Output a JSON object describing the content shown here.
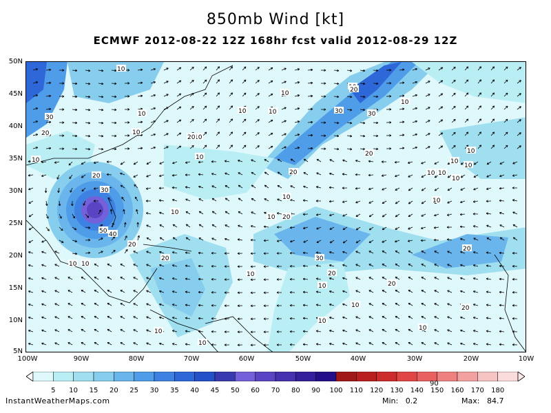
{
  "title": "850mb Wind [kt]",
  "subtitle": "ECMWF 2012-08-22 12Z 168hr fcst valid 2012-08-29 12Z",
  "y_axis_labels": [
    "50N",
    "45N",
    "40N",
    "35N",
    "30N",
    "25N",
    "20N",
    "15N",
    "10N",
    "5N"
  ],
  "x_axis_labels": [
    "100W",
    "90W",
    "80W",
    "70W",
    "60W",
    "50W",
    "40W",
    "30W",
    "20W",
    "10W"
  ],
  "colorbar": {
    "levels": [
      "5",
      "10",
      "15",
      "20",
      "25",
      "30",
      "35",
      "40",
      "45",
      "50",
      "60",
      "70",
      "80",
      "90",
      "100",
      "110",
      "120",
      "130",
      "140",
      "150",
      "160",
      "170",
      "180"
    ],
    "colors": [
      "#dff8fb",
      "#b9eef5",
      "#9fdff0",
      "#86cdee",
      "#6ab6ec",
      "#4f9ce9",
      "#3d82e3",
      "#2e67d8",
      "#2450c8",
      "#3a3ab0",
      "#7460d8",
      "#5a44c4",
      "#4530b0",
      "#331f9a",
      "#240f88",
      "#a01818",
      "#b82020",
      "#cc2c2c",
      "#e04646",
      "#e86060",
      "#ee8080",
      "#f3a0a0",
      "#f7c4c4",
      "#fbdcdc"
    ],
    "stray_label": "90"
  },
  "contour_labels": [
    {
      "text": "10"
    },
    {
      "text": "30"
    },
    {
      "text": "20"
    },
    {
      "text": "10"
    },
    {
      "text": "10"
    },
    {
      "text": "10"
    },
    {
      "text": "30"
    },
    {
      "text": "20"
    },
    {
      "text": "10"
    },
    {
      "text": "10"
    },
    {
      "text": "10"
    },
    {
      "text": "10"
    },
    {
      "text": "20"
    },
    {
      "text": "30"
    },
    {
      "text": "50"
    },
    {
      "text": "40"
    },
    {
      "text": "20"
    },
    {
      "text": "20"
    },
    {
      "text": "10"
    },
    {
      "text": "10"
    },
    {
      "text": "20"
    },
    {
      "text": "10"
    },
    {
      "text": "10"
    },
    {
      "text": "10"
    },
    {
      "text": "10"
    },
    {
      "text": "10"
    },
    {
      "text": "10"
    },
    {
      "text": "10"
    },
    {
      "text": "20"
    },
    {
      "text": "30"
    },
    {
      "text": "20"
    },
    {
      "text": "10"
    },
    {
      "text": "30"
    },
    {
      "text": "20"
    },
    {
      "text": "10"
    },
    {
      "text": "20"
    },
    {
      "text": "10"
    },
    {
      "text": "10"
    },
    {
      "text": "10"
    },
    {
      "text": "10"
    },
    {
      "text": "10"
    },
    {
      "text": "10"
    },
    {
      "text": "20"
    },
    {
      "text": "20"
    },
    {
      "text": "10"
    },
    {
      "text": "10"
    },
    {
      "text": "20"
    },
    {
      "text": "10"
    },
    {
      "text": "10"
    },
    {
      "text": "10"
    }
  ],
  "footer": {
    "site": "InstantWeatherMaps.com",
    "min_label": "Min:",
    "min_value": "0.2",
    "max_label": "Max:",
    "max_value": "84.7"
  }
}
